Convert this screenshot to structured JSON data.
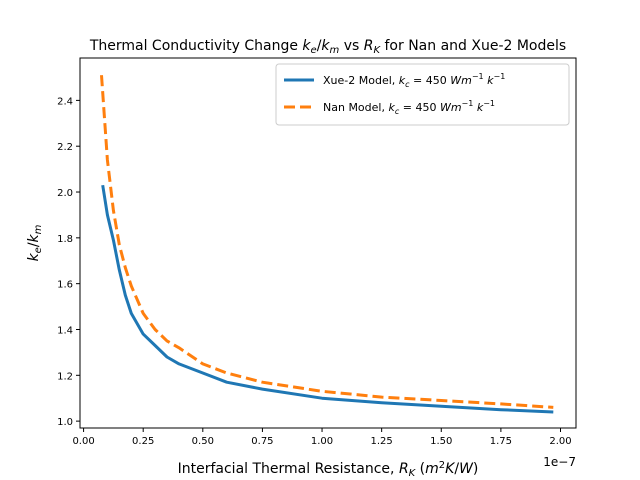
{
  "chart_data": {
    "type": "line",
    "title": "Thermal Conductivity Change k_e/k_m vs R_K for Nan and Xue-2 Models",
    "xlabel": "Interfacial Thermal Resistance, R_K (m²K/W)",
    "ylabel": "k_e/k_m",
    "x_offset_label": "1e−7",
    "x_scale_factor": 1e-07,
    "xlim": [
      -0.015,
      2.065
    ],
    "ylim": [
      0.97,
      2.585
    ],
    "x_ticks": [
      0.0,
      0.25,
      0.5,
      0.75,
      1.0,
      1.25,
      1.5,
      1.75,
      2.0
    ],
    "x_tick_labels": [
      "0.00",
      "0.25",
      "0.50",
      "0.75",
      "1.00",
      "1.25",
      "1.50",
      "1.75",
      "2.00"
    ],
    "y_ticks": [
      1.0,
      1.2,
      1.4,
      1.6,
      1.8,
      2.0,
      2.2,
      2.4
    ],
    "y_tick_labels": [
      "1.0",
      "1.2",
      "1.4",
      "1.6",
      "1.8",
      "2.0",
      "2.2",
      "2.4"
    ],
    "grid": false,
    "legend_position": "top-right",
    "series": [
      {
        "name": "Xue-2 Model, k_c = 450 Wm⁻¹ k⁻¹",
        "color": "#1f77b4",
        "style": "solid",
        "x": [
          0.08,
          0.1,
          0.125,
          0.15,
          0.175,
          0.2,
          0.25,
          0.3,
          0.35,
          0.4,
          0.5,
          0.6,
          0.75,
          1.0,
          1.25,
          1.5,
          1.75,
          1.97
        ],
        "y": [
          2.03,
          1.9,
          1.79,
          1.66,
          1.55,
          1.47,
          1.38,
          1.33,
          1.28,
          1.25,
          1.21,
          1.17,
          1.14,
          1.1,
          1.08,
          1.065,
          1.05,
          1.04
        ]
      },
      {
        "name": "Nan Model, k_c = 450 Wm⁻¹ k⁻¹",
        "color": "#ff7f0e",
        "style": "dashed",
        "x": [
          0.075,
          0.1,
          0.125,
          0.15,
          0.175,
          0.2,
          0.25,
          0.3,
          0.35,
          0.4,
          0.5,
          0.6,
          0.75,
          1.0,
          1.25,
          1.5,
          1.75,
          1.97
        ],
        "y": [
          2.51,
          2.14,
          1.92,
          1.77,
          1.67,
          1.59,
          1.47,
          1.4,
          1.35,
          1.32,
          1.25,
          1.21,
          1.17,
          1.13,
          1.105,
          1.09,
          1.075,
          1.06
        ]
      }
    ]
  }
}
